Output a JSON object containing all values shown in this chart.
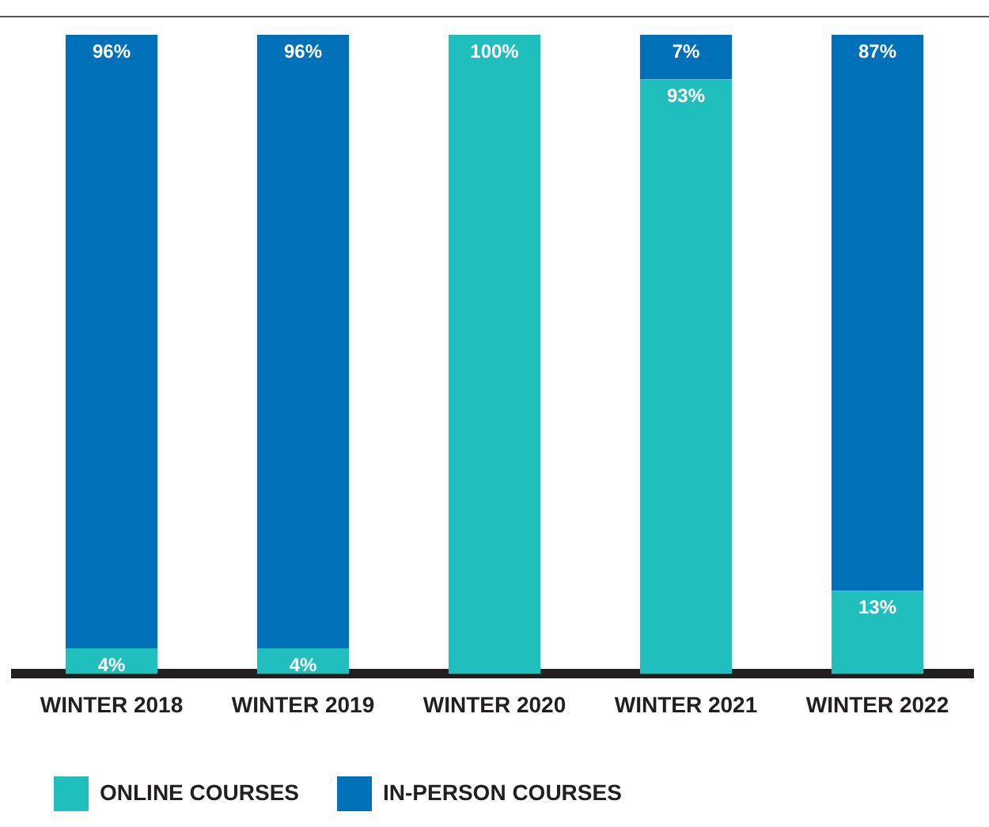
{
  "chart_data": {
    "type": "bar",
    "stacked": true,
    "categories": [
      "WINTER 2018",
      "WINTER 2019",
      "WINTER 2020",
      "WINTER 2021",
      "WINTER 2022"
    ],
    "series": [
      {
        "name": "ONLINE COURSES",
        "color": "#20bfbd",
        "values": [
          4,
          4,
          100,
          93,
          13
        ],
        "value_labels": [
          "4%",
          "4%",
          "100%",
          "93%",
          "13%"
        ]
      },
      {
        "name": "IN-PERSON COURSES",
        "color": "#0070b8",
        "values": [
          96,
          96,
          0,
          7,
          87
        ],
        "value_labels": [
          "96%",
          "96%",
          null,
          "7%",
          "87%"
        ]
      }
    ],
    "ylim": [
      0,
      100
    ],
    "tick_labels": "x",
    "grid": false,
    "legend": "bottom left"
  }
}
